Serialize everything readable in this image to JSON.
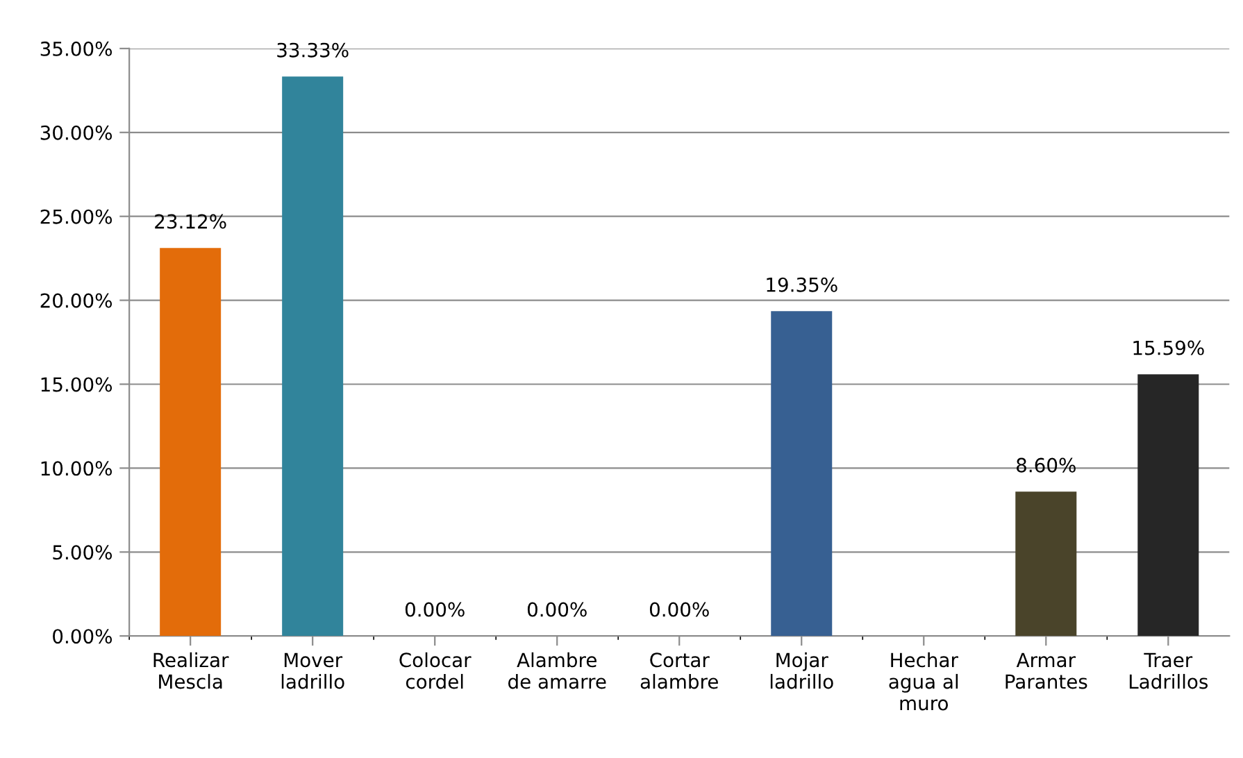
{
  "chart_data": {
    "type": "bar",
    "categories": [
      "Realizar\nMescla",
      "Mover\nladrillo",
      "Colocar\ncordel",
      "Alambre\nde amarre",
      "Cortar\nalambre",
      "Mojar\nladrillo",
      "Hechar\nagua al\nmuro",
      "Armar\nParantes",
      "Traer\nLadrillos"
    ],
    "values": [
      23.12,
      33.33,
      0,
      0,
      0,
      19.35,
      null,
      8.6,
      15.59
    ],
    "value_labels": [
      "23.12%",
      "33.33%",
      "0.00%",
      "0.00%",
      "0.00%",
      "19.35%",
      null,
      "8.60%",
      "15.59%"
    ],
    "colors": [
      "#e36c0a",
      "#31849b",
      null,
      null,
      null,
      "#376092",
      null,
      "#4a442a",
      "#262626"
    ],
    "ylim": [
      0,
      35
    ],
    "yticks": [
      {
        "value": 0,
        "label": "0.00%"
      },
      {
        "value": 5,
        "label": "5.00%"
      },
      {
        "value": 10,
        "label": "10.00%"
      },
      {
        "value": 15,
        "label": "15.00%"
      },
      {
        "value": 20,
        "label": "20.00%"
      },
      {
        "value": 25,
        "label": "25.00%"
      },
      {
        "value": 30,
        "label": "30.00%"
      },
      {
        "value": 35,
        "label": "35.00%"
      }
    ],
    "grid": "y",
    "legend": false
  }
}
